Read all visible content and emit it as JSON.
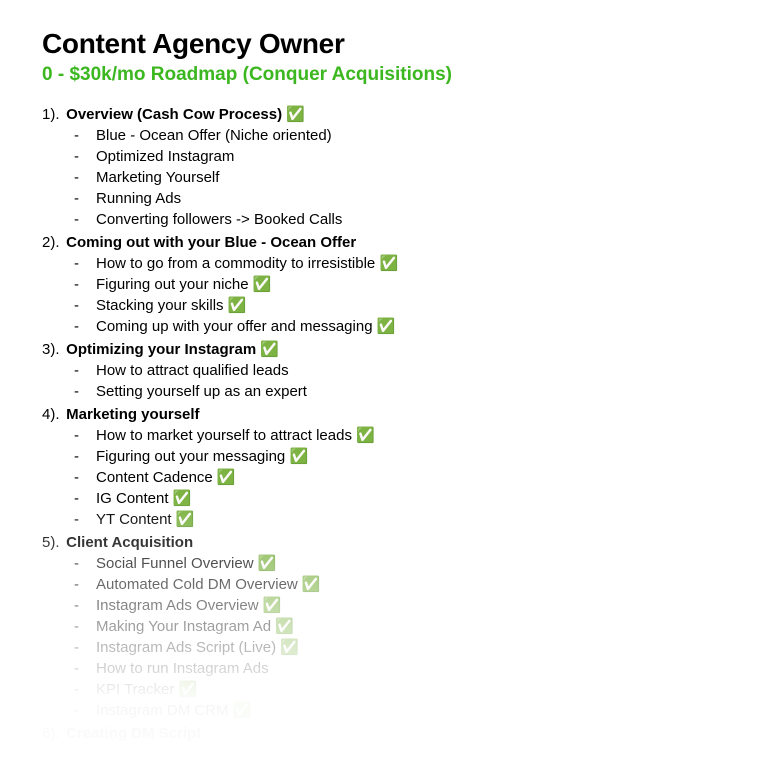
{
  "title": "Content Agency Owner",
  "subtitle": "0 - $30k/mo Roadmap (Conquer Acquisitions)",
  "check_glyph": "✅",
  "colors": {
    "title": "#000000",
    "subtitle": "#3bb71f",
    "body": "#000000",
    "background": "#ffffff"
  },
  "sections": [
    {
      "num": "1).",
      "label": "Overview (Cash Cow Process)",
      "check": true,
      "items": [
        {
          "text": "Blue - Ocean Offer (Niche oriented)",
          "check": false
        },
        {
          "text": "Optimized Instagram",
          "check": false
        },
        {
          "text": "Marketing Yourself",
          "check": false
        },
        {
          "text": "Running Ads",
          "check": false
        },
        {
          "text": "Converting followers -> Booked Calls",
          "check": false
        }
      ]
    },
    {
      "num": "2).",
      "label": "Coming out with your Blue - Ocean Offer",
      "check": false,
      "items": [
        {
          "text": "How to go from a commodity to irresistible",
          "check": true
        },
        {
          "text": "Figuring out your niche",
          "check": true
        },
        {
          "text": "Stacking your skills",
          "check": true
        },
        {
          "text": "Coming up with your offer and messaging",
          "check": true
        }
      ]
    },
    {
      "num": "3).",
      "label": "Optimizing your Instagram",
      "check": true,
      "items": [
        {
          "text": "How to attract qualified leads",
          "check": false
        },
        {
          "text": "Setting yourself up as an expert",
          "check": false
        }
      ]
    },
    {
      "num": "4).",
      "label": "Marketing yourself",
      "check": false,
      "items": [
        {
          "text": "How to market yourself to attract leads",
          "check": true
        },
        {
          "text": "Figuring out your messaging",
          "check": true
        },
        {
          "text": "Content Cadence",
          "check": true
        },
        {
          "text": "IG Content",
          "check": true
        },
        {
          "text": "YT Content",
          "check": true
        }
      ]
    },
    {
      "num": "5).",
      "label": "Client Acquisition",
      "check": false,
      "items": [
        {
          "text": "Social Funnel Overview ",
          "check": true
        },
        {
          "text": "Automated Cold DM Overview",
          "check": true
        },
        {
          "text": "Instagram Ads Overview",
          "check": true
        },
        {
          "text": "Making Your Instagram Ad",
          "check": true
        },
        {
          "text": "Instagram Ads Script (Live)",
          "check": true
        },
        {
          "text": "How to run Instagram Ads",
          "check": false
        },
        {
          "text": "KPI Tracker",
          "check": true
        },
        {
          "text": "Instagram DM CRM",
          "check": true
        }
      ]
    },
    {
      "num": "6).",
      "label": "Creating DM Script",
      "check": false,
      "items": []
    }
  ]
}
